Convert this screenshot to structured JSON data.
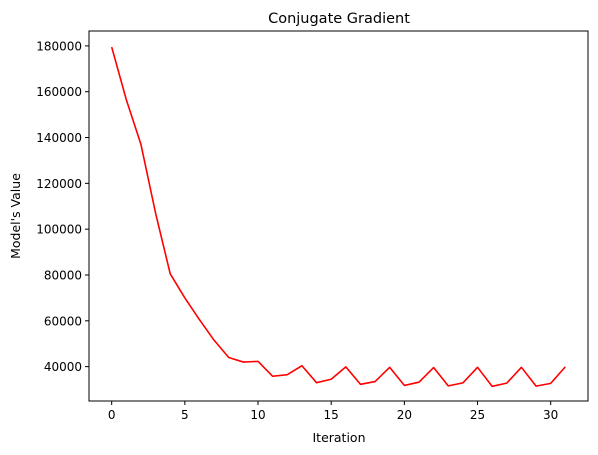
{
  "chart_data": {
    "type": "line",
    "title": "Conjugate Gradient",
    "xlabel": "Iteration",
    "ylabel": "Model's Value",
    "xlim": [
      -1.55,
      32.55
    ],
    "ylim": [
      25000,
      186500
    ],
    "xticks": [
      0,
      5,
      10,
      15,
      20,
      25,
      30
    ],
    "yticks": [
      40000,
      60000,
      80000,
      100000,
      120000,
      140000,
      160000,
      180000
    ],
    "grid": false,
    "series": [
      {
        "color": "#ff0000",
        "x": [
          0,
          1,
          2,
          3,
          4,
          5,
          6,
          7,
          8,
          9,
          10,
          11,
          12,
          13,
          14,
          15,
          16,
          17,
          18,
          19,
          20,
          21,
          22,
          23,
          24,
          25,
          26,
          27,
          28,
          29,
          30,
          31
        ],
        "y": [
          179500,
          156500,
          137000,
          107000,
          80500,
          70000,
          60500,
          51500,
          44000,
          42000,
          42300,
          35800,
          36500,
          40400,
          33000,
          34500,
          39900,
          32300,
          33500,
          39700,
          31800,
          33200,
          39600,
          31600,
          32900,
          39700,
          31400,
          32800,
          39700,
          31500,
          32700,
          39900
        ]
      }
    ]
  }
}
